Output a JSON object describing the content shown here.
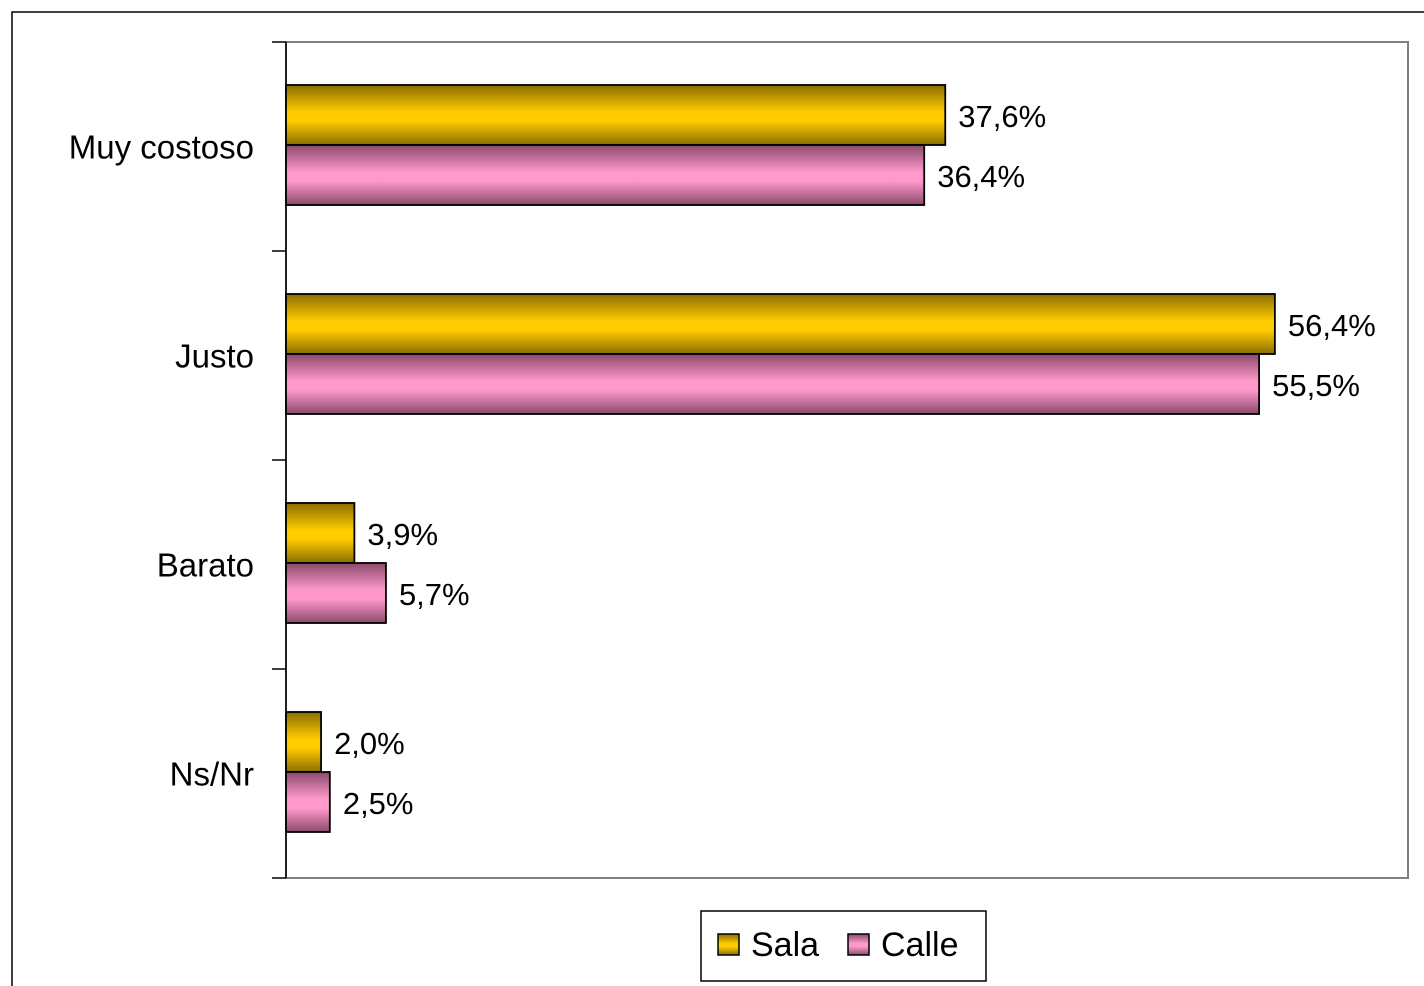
{
  "chart_data": {
    "type": "bar",
    "orientation": "horizontal",
    "categories": [
      "Muy costoso",
      "Justo",
      "Barato",
      "Ns/Nr"
    ],
    "series": [
      {
        "name": "Sala",
        "values": [
          37.6,
          56.4,
          3.9,
          2.0
        ],
        "labels": [
          "37,6%",
          "56,4%",
          "3,9%",
          "2,0%"
        ],
        "color": "#FFCC00",
        "dark_color": "#8A6D00"
      },
      {
        "name": "Calle",
        "values": [
          36.4,
          55.5,
          5.7,
          2.5
        ],
        "labels": [
          "36,4%",
          "55,5%",
          "5,7%",
          "2,5%"
        ],
        "color": "#FF99CC",
        "dark_color": "#8A4A6A"
      }
    ],
    "title": "",
    "xlabel": "",
    "ylabel": "",
    "xlim": [
      0,
      60
    ],
    "grid": false,
    "legend": "bottom-center",
    "plot_border_color": "#808080"
  }
}
